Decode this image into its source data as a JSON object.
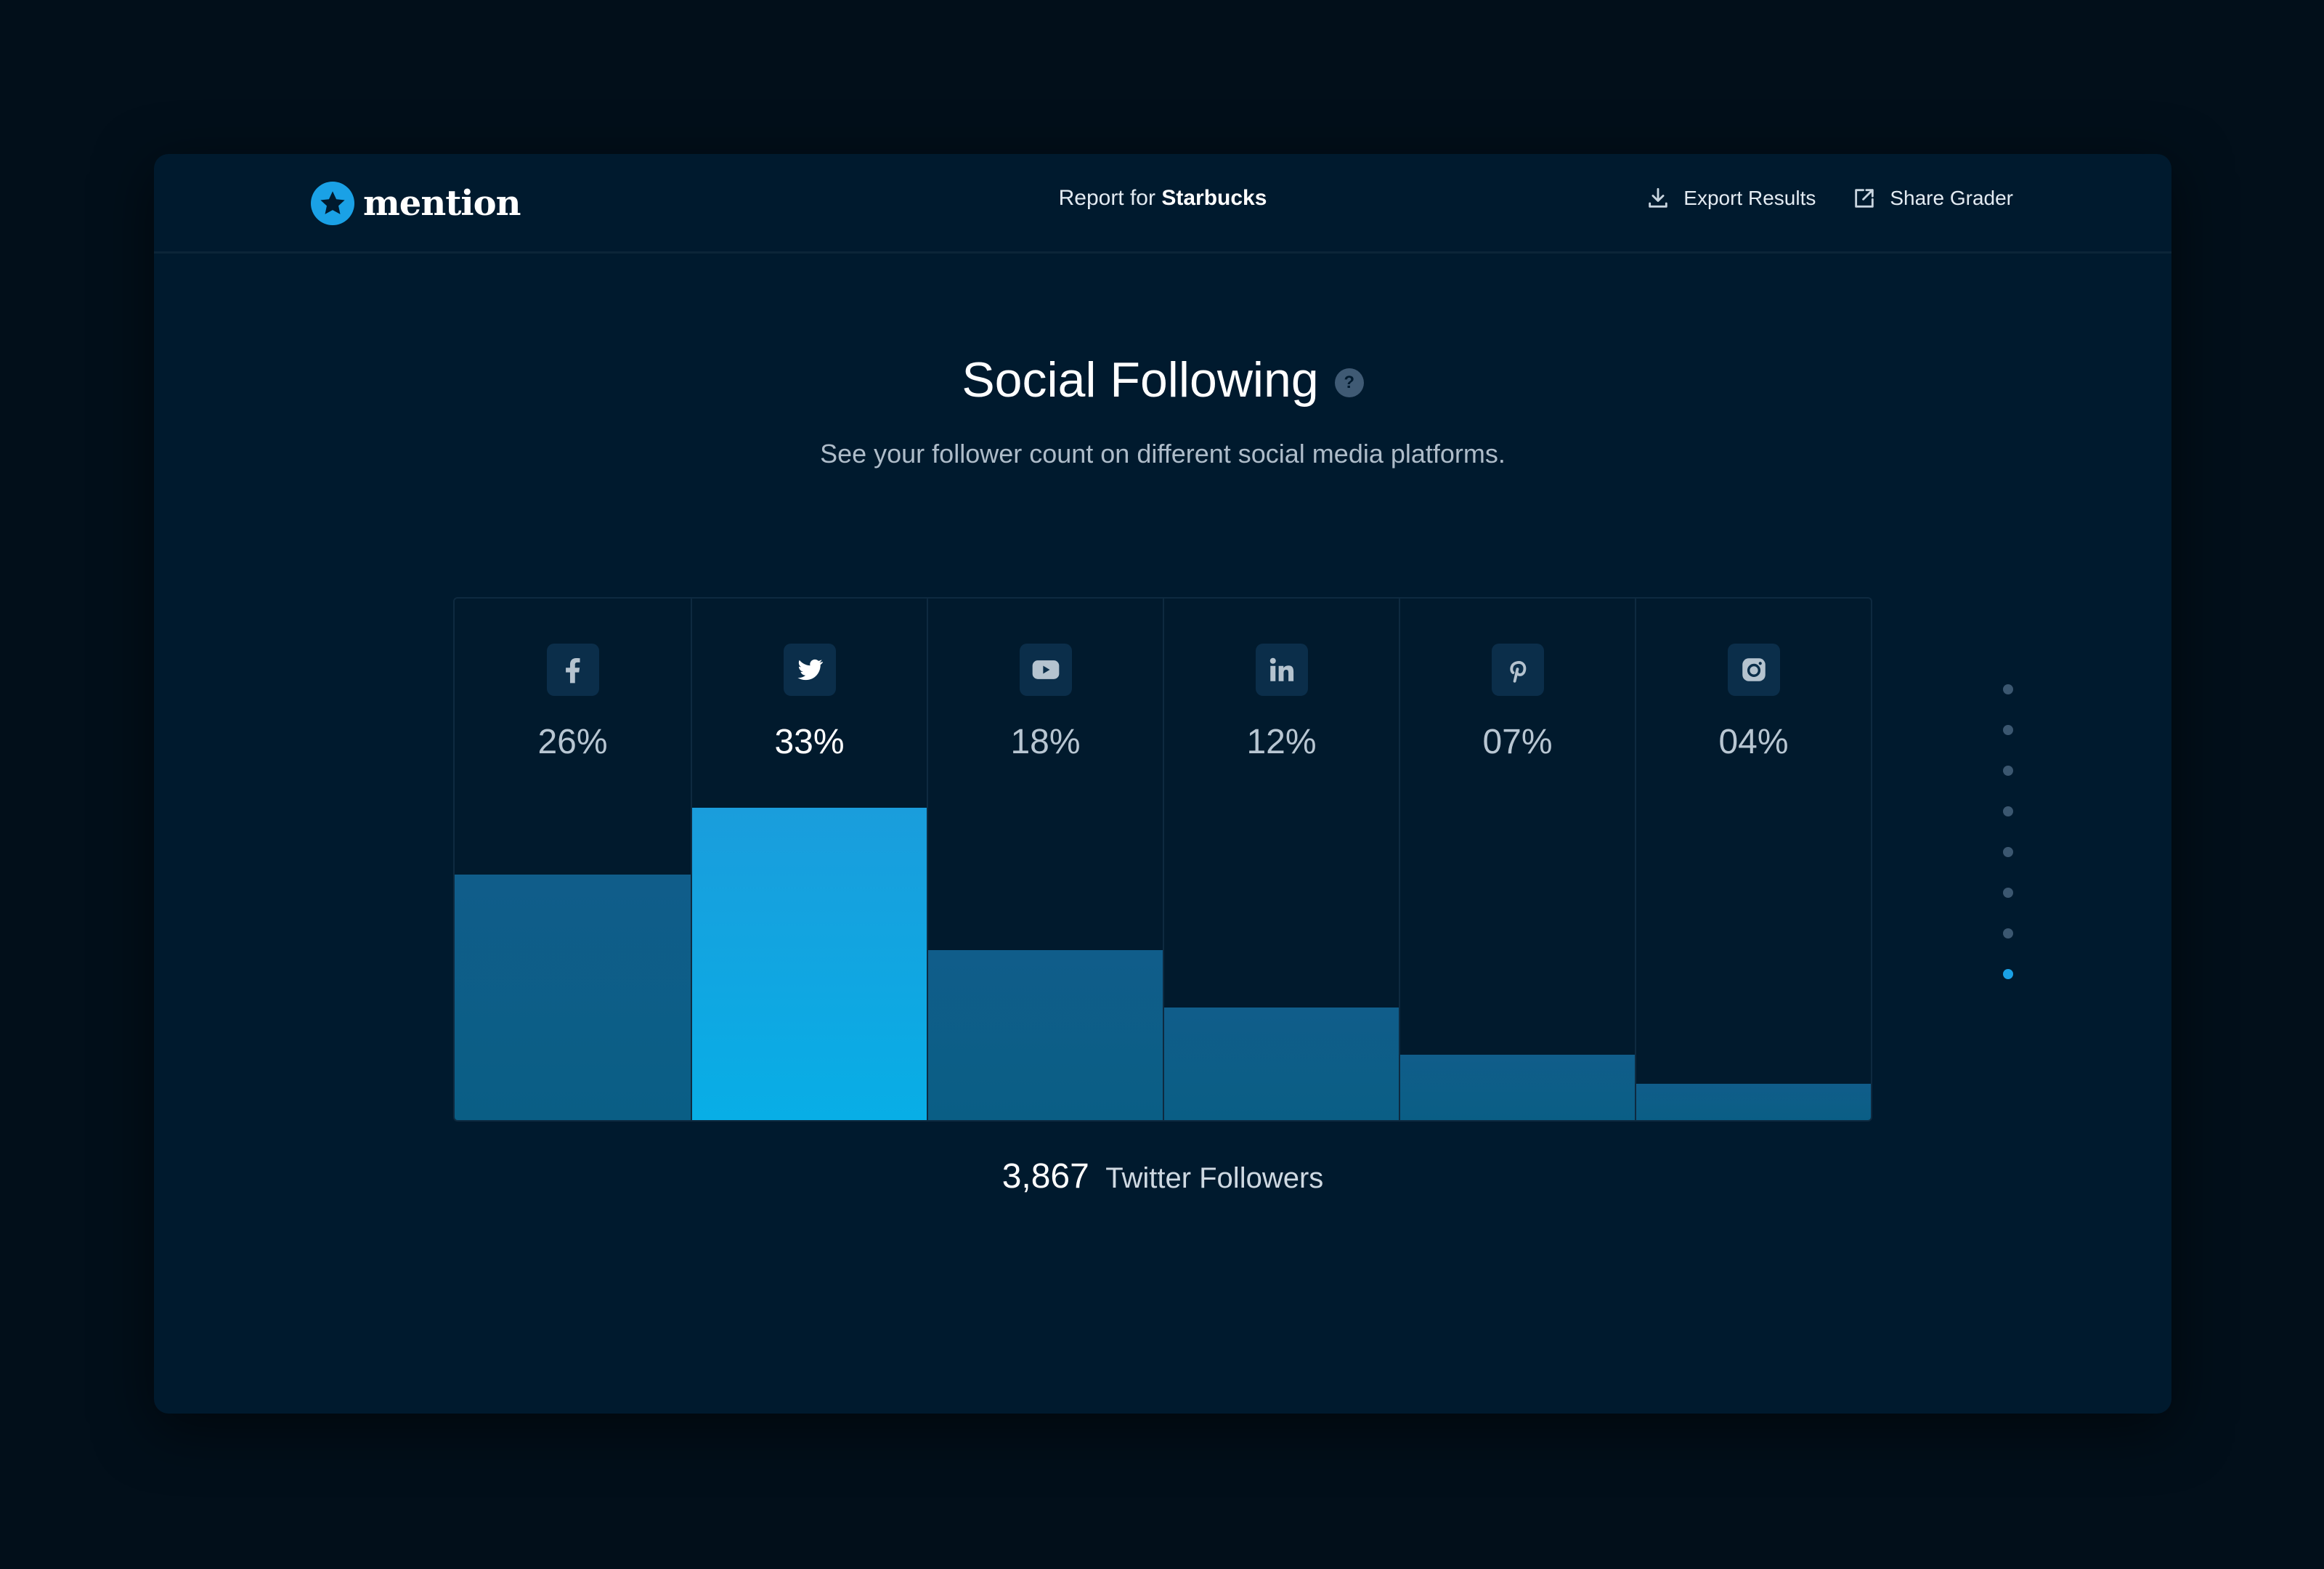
{
  "header": {
    "logo_text": "mention",
    "report_prefix": "Report for",
    "brand": "Starbucks",
    "export_label": "Export Results",
    "share_label": "Share Grader"
  },
  "section": {
    "title": "Social Following",
    "help": "?",
    "subtitle": "See your follower count on different social media platforms."
  },
  "chart_data": {
    "type": "bar",
    "categories": [
      "Facebook",
      "Twitter",
      "YouTube",
      "LinkedIn",
      "Pinterest",
      "Instagram"
    ],
    "labels": [
      "26%",
      "33%",
      "18%",
      "12%",
      "07%",
      "04%"
    ],
    "values": [
      26,
      33,
      18,
      12,
      7,
      4
    ],
    "ylim": [
      0,
      55
    ],
    "highlighted": "Twitter",
    "icons": [
      "facebook-icon",
      "twitter-icon",
      "youtube-icon",
      "linkedin-icon",
      "pinterest-icon",
      "instagram-icon"
    ]
  },
  "caption": {
    "count": "3,867",
    "label": "Twitter Followers"
  },
  "pagination": {
    "total": 8,
    "active": 8
  },
  "colors": {
    "accent": "#1aa1e6",
    "bar": "#105d8a",
    "bar_active": "#13a6e2",
    "background": "#001a2e"
  }
}
